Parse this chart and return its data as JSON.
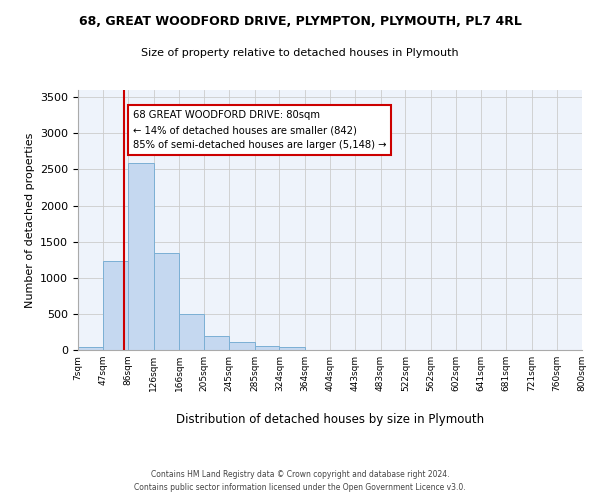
{
  "title": "68, GREAT WOODFORD DRIVE, PLYMPTON, PLYMOUTH, PL7 4RL",
  "subtitle": "Size of property relative to detached houses in Plymouth",
  "xlabel": "Distribution of detached houses by size in Plymouth",
  "ylabel": "Number of detached properties",
  "bin_labels": [
    "7sqm",
    "47sqm",
    "86sqm",
    "126sqm",
    "166sqm",
    "205sqm",
    "245sqm",
    "285sqm",
    "324sqm",
    "364sqm",
    "404sqm",
    "443sqm",
    "483sqm",
    "522sqm",
    "562sqm",
    "602sqm",
    "641sqm",
    "681sqm",
    "721sqm",
    "760sqm",
    "800sqm"
  ],
  "bar_values": [
    40,
    1230,
    2590,
    1350,
    500,
    200,
    110,
    50,
    40,
    0,
    0,
    0,
    0,
    0,
    0,
    0,
    0,
    0,
    0,
    0
  ],
  "bar_color": "#c5d8f0",
  "bar_edgecolor": "#7bafd4",
  "property_line_x": 80,
  "property_line_color": "#cc0000",
  "annotation_box_text": "68 GREAT WOODFORD DRIVE: 80sqm\n← 14% of detached houses are smaller (842)\n85% of semi-detached houses are larger (5,148) →",
  "ylim": [
    0,
    3600
  ],
  "grid_color": "#cccccc",
  "background_color": "#eef3fb",
  "footer_line1": "Contains HM Land Registry data © Crown copyright and database right 2024.",
  "footer_line2": "Contains public sector information licensed under the Open Government Licence v3.0."
}
